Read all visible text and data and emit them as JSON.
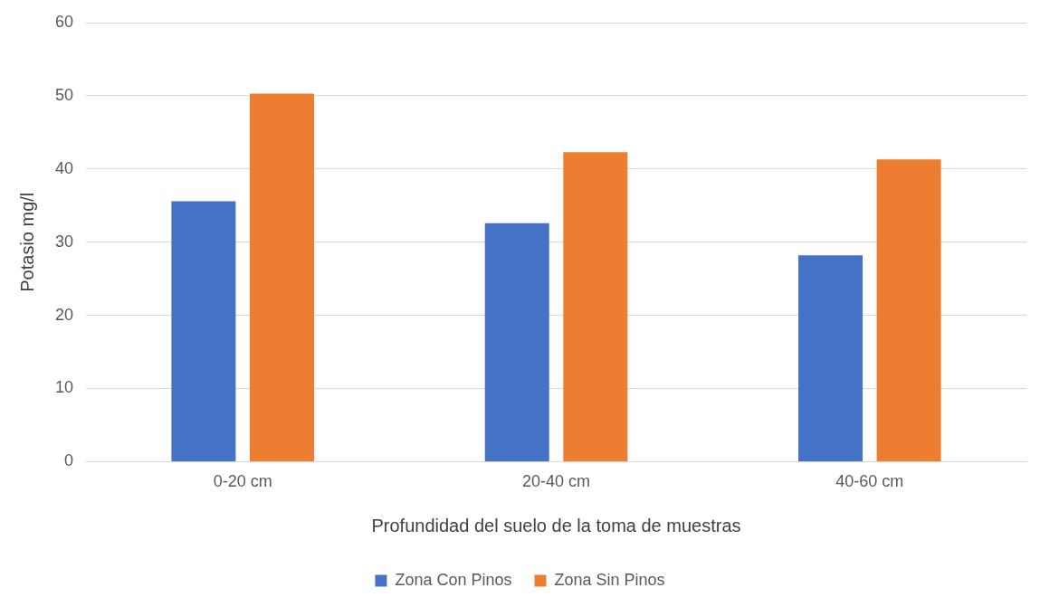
{
  "chart_data": {
    "type": "bar",
    "xlabel": "Profundidad del suelo de la toma de muestras",
    "ylabel": "Potasio mg/l",
    "categories": [
      "0-20 cm",
      "20-40 cm",
      "40-60 cm"
    ],
    "series": [
      {
        "name": "Zona Con Pinos",
        "color": "#4472c4",
        "values": [
          35.6,
          32.6,
          28.2
        ]
      },
      {
        "name": "Zona Sin Pinos",
        "color": "#ed7d31",
        "values": [
          50.3,
          42.3,
          41.3
        ]
      }
    ],
    "ylim": [
      0,
      60
    ],
    "yticks": [
      0,
      10,
      20,
      30,
      40,
      50,
      60
    ],
    "grid": "y",
    "legend": "bottom"
  }
}
